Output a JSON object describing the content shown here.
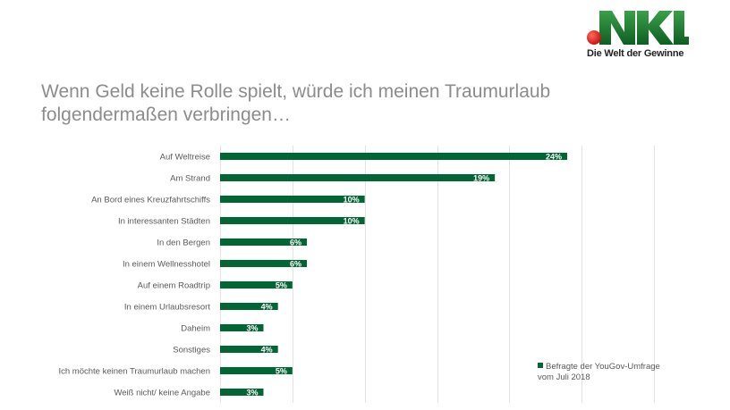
{
  "logo": {
    "brand": "NKL",
    "tagline": "Die Welt der Gewinne",
    "colors": {
      "green": "#1e7a2e",
      "red": "#d61a1a"
    }
  },
  "title": "Wenn Geld keine Rolle spielt, würde ich meinen Traumurlaub folgendermaßen verbringen…",
  "chart_data": {
    "type": "bar",
    "orientation": "horizontal",
    "title": "Wenn Geld keine Rolle spielt, würde ich meinen Traumurlaub folgendermaßen verbringen…",
    "categories": [
      "Auf Weltreise",
      "Am Strand",
      "An Bord eines Kreuzfahrtschiffs",
      "In interessanten Städten",
      "In den Bergen",
      "In einem Wellnesshotel",
      "Auf einem Roadtrip",
      "In einem Urlaubsresort",
      "Daheim",
      "Sonstiges",
      "Ich möchte keinen Traumurlaub machen",
      "Weiß nicht/ keine Angabe"
    ],
    "series": [
      {
        "name": "Befragte der YouGov-Umfrage vom Juli 2018",
        "values": [
          24,
          19,
          10,
          10,
          6,
          6,
          5,
          4,
          3,
          4,
          5,
          3
        ],
        "labels": [
          "24%",
          "19%",
          "10%",
          "10%",
          "6%",
          "6%",
          "5%",
          "4%",
          "3%",
          "4%",
          "5%",
          "3%"
        ],
        "color": "#006633"
      }
    ],
    "xlim": [
      0,
      30
    ],
    "x_gridlines": [
      0,
      5,
      10,
      15,
      20,
      25,
      30
    ],
    "grid": true,
    "xlabel": "",
    "ylabel": "",
    "legend": {
      "position": "bottom-right",
      "line1": "Befragte der YouGov-Umfrage",
      "line2": "vom Juli 2018"
    }
  }
}
